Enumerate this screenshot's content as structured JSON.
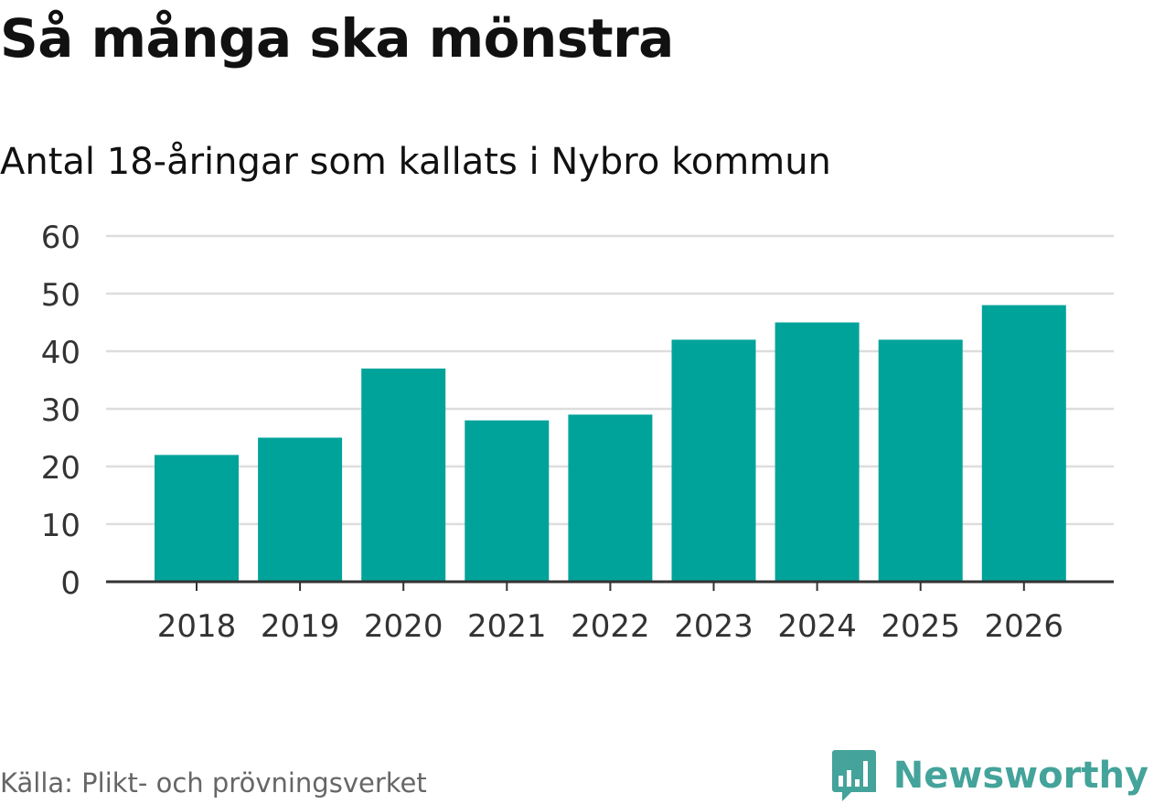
{
  "header": {
    "title": "Så många ska mönstra",
    "subtitle": "Antal 18-åringar som kallats i Nybro kommun"
  },
  "footer": {
    "source": "Källa: Plikt- och prövningsverket",
    "brand": "Newsworthy",
    "brand_icon": "bar-chart-speech-bubble-icon"
  },
  "colors": {
    "bar": "#00a39a",
    "grid": "#dddddd",
    "axis": "#333333",
    "brand": "#44a39a"
  },
  "chart_data": {
    "type": "bar",
    "title": "Så många ska mönstra",
    "subtitle": "Antal 18-åringar som kallats i Nybro kommun",
    "categories": [
      "2018",
      "2019",
      "2020",
      "2021",
      "2022",
      "2023",
      "2024",
      "2025",
      "2026"
    ],
    "values": [
      22,
      25,
      37,
      28,
      29,
      42,
      45,
      42,
      48
    ],
    "xlabel": "",
    "ylabel": "",
    "ylim": [
      0,
      60
    ],
    "yticks": [
      0,
      10,
      20,
      30,
      40,
      50,
      60
    ],
    "grid": true,
    "legend": "none"
  }
}
